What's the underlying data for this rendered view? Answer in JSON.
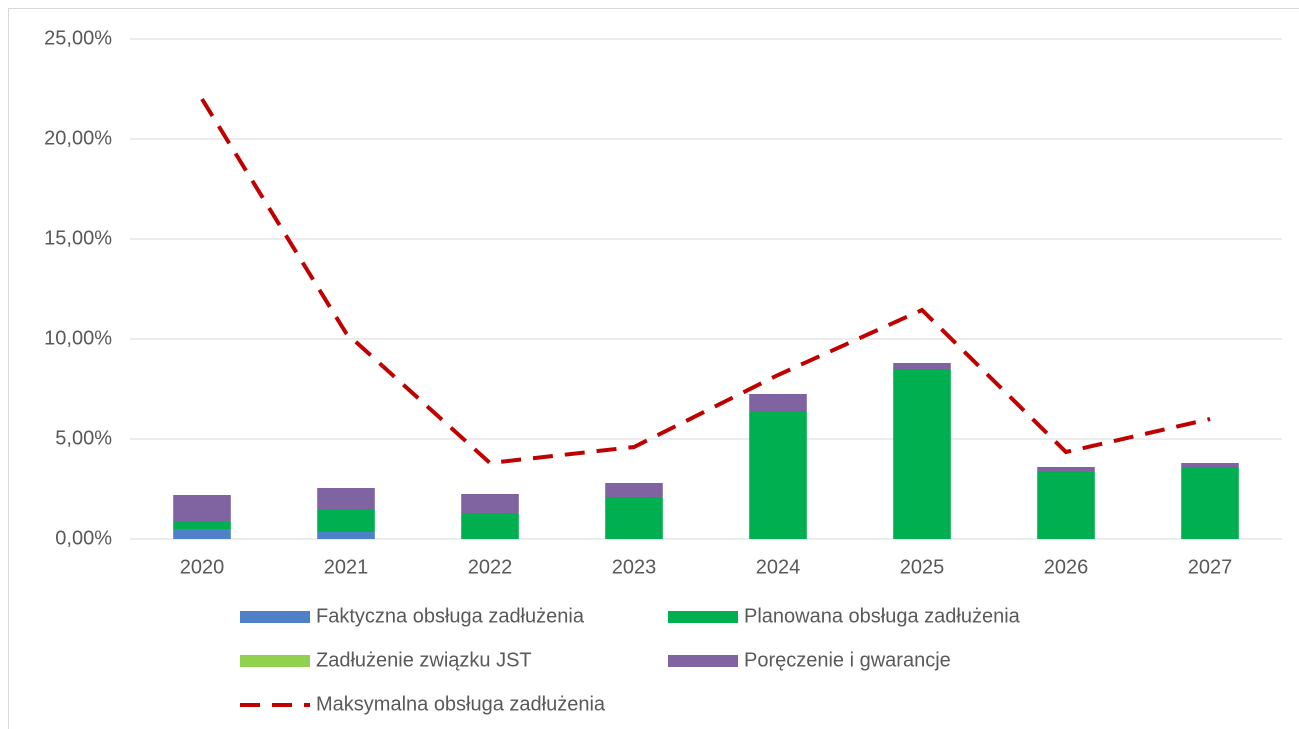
{
  "chart_data": {
    "type": "bar",
    "stacked": true,
    "categories": [
      "2020",
      "2021",
      "2022",
      "2023",
      "2024",
      "2025",
      "2026",
      "2027"
    ],
    "series": [
      {
        "name": "Faktyczna obsługa zadłużenia",
        "color": "#4f81c8",
        "values": [
          0.5,
          0.35,
          0,
          0,
          0,
          0,
          0,
          0
        ]
      },
      {
        "name": "Planowana obsługa zadłużenia",
        "color": "#00b050",
        "values": [
          0.4,
          1.15,
          1.3,
          2.1,
          6.4,
          8.5,
          3.35,
          3.6
        ]
      },
      {
        "name": "Zadłużenie związku JST",
        "color": "#92d050",
        "values": [
          0,
          0,
          0,
          0,
          0,
          0,
          0,
          0
        ]
      },
      {
        "name": "Poręczenie i gwarancje",
        "color": "#8064a2",
        "values": [
          1.3,
          1.05,
          0.95,
          0.7,
          0.85,
          0.3,
          0.25,
          0.2
        ]
      },
      {
        "name": "Maksymalna obsługa zadłużenia",
        "color": "#c00000",
        "type": "line",
        "dashed": true,
        "values": [
          22.0,
          10.3,
          3.8,
          4.6,
          8.2,
          11.45,
          4.35,
          6.0
        ]
      }
    ],
    "ylim": [
      0,
      25
    ],
    "yticks": [
      {
        "value": 0,
        "label": "0,00%"
      },
      {
        "value": 5,
        "label": "5,00%"
      },
      {
        "value": 10,
        "label": "10,00%"
      },
      {
        "value": 15,
        "label": "15,00%"
      },
      {
        "value": 20,
        "label": "20,00%"
      },
      {
        "value": 25,
        "label": "25,00%"
      }
    ],
    "grid": true,
    "legend": "bottom"
  }
}
